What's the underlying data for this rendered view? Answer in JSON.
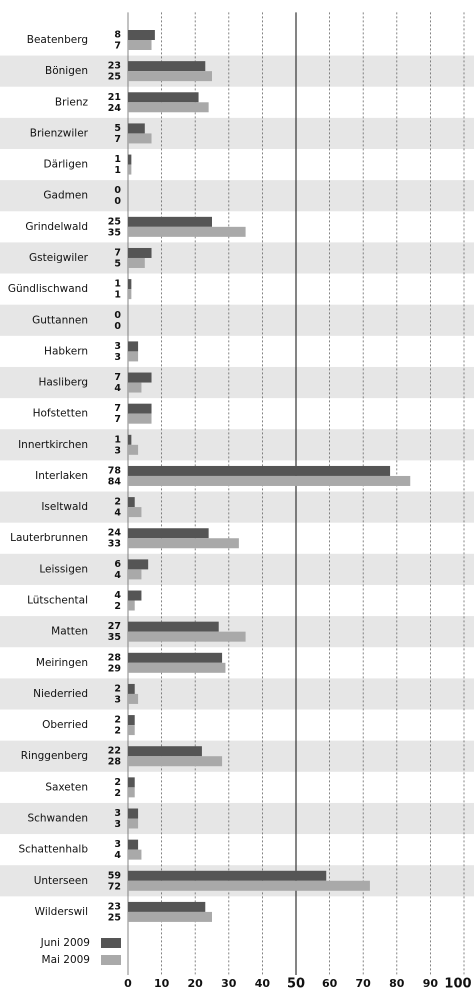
{
  "chart_data": {
    "type": "bar",
    "orientation": "horizontal",
    "categories": [
      "Beatenberg",
      "Bönigen",
      "Brienz",
      "Brienzwiler",
      "Därligen",
      "Gadmen",
      "Grindelwald",
      "Gsteigwiler",
      "Gündlischwand",
      "Guttannen",
      "Habkern",
      "Hasliberg",
      "Hofstetten",
      "Innertkirchen",
      "Interlaken",
      "Iseltwald",
      "Lauterbrunnen",
      "Leissigen",
      "Lütschental",
      "Matten",
      "Meiringen",
      "Niederried",
      "Oberried",
      "Ringgenberg",
      "Saxeten",
      "Schwanden",
      "Schattenhalb",
      "Unterseen",
      "Wilderswil"
    ],
    "series": [
      {
        "name": "Juni 2009",
        "color": "#555555",
        "values": [
          8,
          23,
          21,
          5,
          1,
          0,
          25,
          7,
          1,
          0,
          3,
          7,
          7,
          1,
          78,
          2,
          24,
          6,
          4,
          27,
          28,
          2,
          2,
          22,
          2,
          3,
          3,
          59,
          23
        ]
      },
      {
        "name": "Mai 2009",
        "color": "#a9a9a9",
        "values": [
          7,
          25,
          24,
          7,
          1,
          0,
          35,
          5,
          1,
          0,
          3,
          4,
          7,
          3,
          84,
          4,
          33,
          4,
          2,
          35,
          29,
          3,
          2,
          28,
          2,
          3,
          4,
          72,
          25
        ]
      }
    ],
    "xlim": [
      0,
      100
    ],
    "xticks": [
      0,
      10,
      20,
      30,
      40,
      50,
      60,
      70,
      80,
      90,
      100
    ],
    "grid": true,
    "reference_line": 50,
    "legend": "bottom-left"
  }
}
